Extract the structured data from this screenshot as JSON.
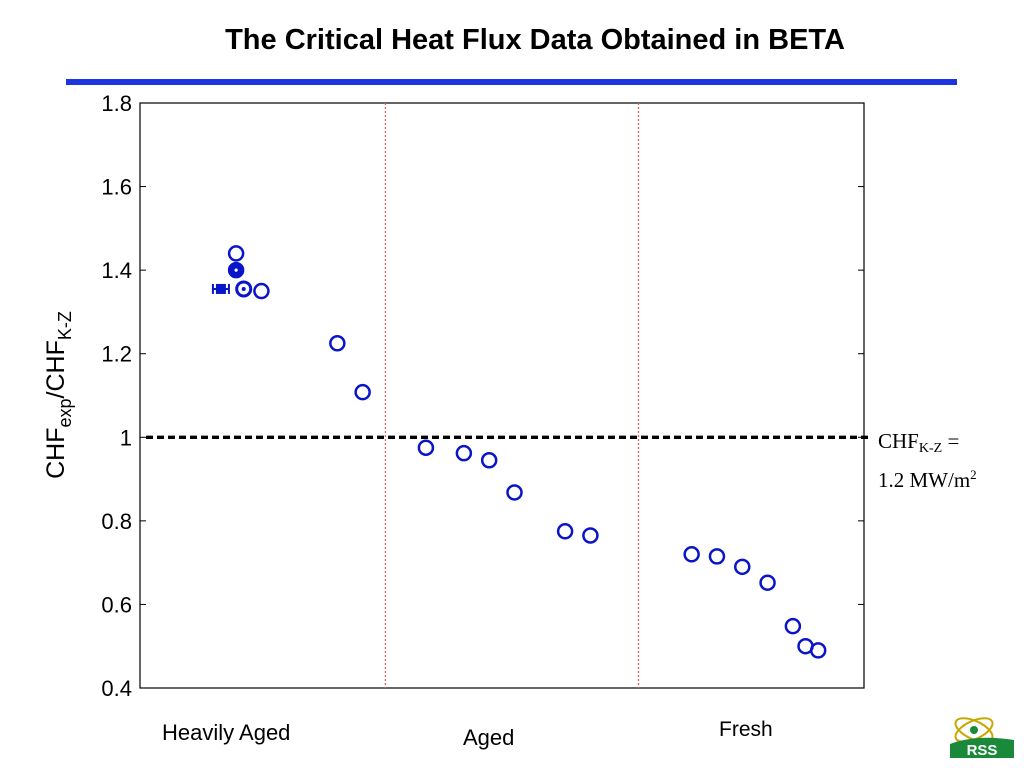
{
  "title": "The Critical Heat Flux Data Obtained in BETA",
  "colors": {
    "accent_rule": "#1c35e0",
    "marker": "#0a14c8",
    "divider": "#e06060",
    "reference_line": "#000000"
  },
  "chart_data": {
    "type": "scatter",
    "ylabel": {
      "base": "CHF",
      "sub1": "exp",
      "mid": "/CHF",
      "sub2": "K-Z"
    },
    "ylim": [
      0.4,
      1.8
    ],
    "yticks": [
      "0.4",
      "0.6",
      "0.8",
      "1",
      "1.2",
      "1.4",
      "1.6",
      "1.8"
    ],
    "xlim": [
      0,
      26
    ],
    "grid": false,
    "categories": [
      "Heavily Aged",
      "Aged",
      "Fresh"
    ],
    "category_dividers": [
      9.5,
      19.5
    ],
    "reference_line": {
      "y": 1.0,
      "label_line1_base": "CHF",
      "label_line1_sub": "K-Z",
      "label_line1_tail": " =",
      "label_line2_base": "1.2 MW/m",
      "label_line2_sup": "2"
    },
    "series": [
      {
        "points": [
          {
            "x": 3.0,
            "y": 1.355,
            "marker": "filled-square-errorbar"
          },
          {
            "x": 3.6,
            "y": 1.44,
            "marker": "circle"
          },
          {
            "x": 3.6,
            "y": 1.4,
            "marker": "circle-filled"
          },
          {
            "x": 3.9,
            "y": 1.355,
            "marker": "circle-dot"
          },
          {
            "x": 4.6,
            "y": 1.35,
            "marker": "circle"
          },
          {
            "x": 7.6,
            "y": 1.225,
            "marker": "circle"
          },
          {
            "x": 8.6,
            "y": 1.108,
            "marker": "circle"
          },
          {
            "x": 11.1,
            "y": 0.975,
            "marker": "circle"
          },
          {
            "x": 12.6,
            "y": 0.962,
            "marker": "circle"
          },
          {
            "x": 13.6,
            "y": 0.945,
            "marker": "circle"
          },
          {
            "x": 14.6,
            "y": 0.868,
            "marker": "circle"
          },
          {
            "x": 16.6,
            "y": 0.775,
            "marker": "circle"
          },
          {
            "x": 17.6,
            "y": 0.765,
            "marker": "circle"
          },
          {
            "x": 21.6,
            "y": 0.72,
            "marker": "circle"
          },
          {
            "x": 22.6,
            "y": 0.715,
            "marker": "circle"
          },
          {
            "x": 23.6,
            "y": 0.69,
            "marker": "circle"
          },
          {
            "x": 24.6,
            "y": 0.652,
            "marker": "circle"
          },
          {
            "x": 25.6,
            "y": 0.548,
            "marker": "circle"
          },
          {
            "x": 26.1,
            "y": 0.5,
            "marker": "circle"
          },
          {
            "x": 26.6,
            "y": 0.49,
            "marker": "circle"
          }
        ]
      }
    ]
  },
  "logo": {
    "icon": "atom-logo-icon",
    "text": "RSS"
  }
}
